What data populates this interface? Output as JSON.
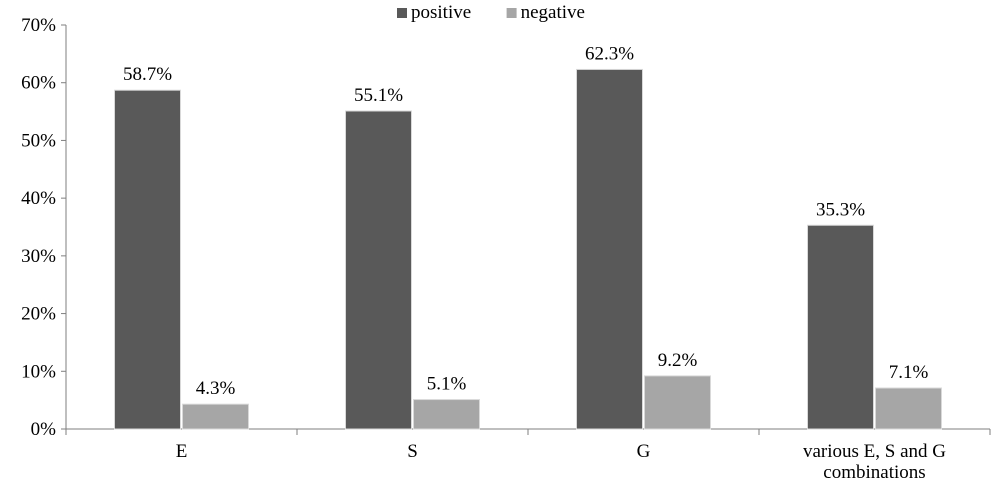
{
  "chart_data": {
    "type": "bar",
    "categories": [
      [
        "E"
      ],
      [
        "S"
      ],
      [
        "G"
      ],
      [
        "various E, S and G",
        "combinations"
      ]
    ],
    "series": [
      {
        "name": "positive",
        "values": [
          58.7,
          55.1,
          62.3,
          35.3
        ],
        "labels": [
          "58.7%",
          "55.1%",
          "62.3%",
          "35.3%"
        ],
        "color": "#595959"
      },
      {
        "name": "negative",
        "values": [
          4.3,
          5.1,
          9.2,
          7.1
        ],
        "labels": [
          "4.3%",
          "5.1%",
          "9.2%",
          "7.1%"
        ],
        "color": "#a6a6a6"
      }
    ],
    "y_ticks": [
      "0%",
      "10%",
      "20%",
      "30%",
      "40%",
      "50%",
      "60%",
      "70%"
    ],
    "ylim": [
      0,
      70
    ],
    "grid": false,
    "legend_position": "top-center"
  }
}
